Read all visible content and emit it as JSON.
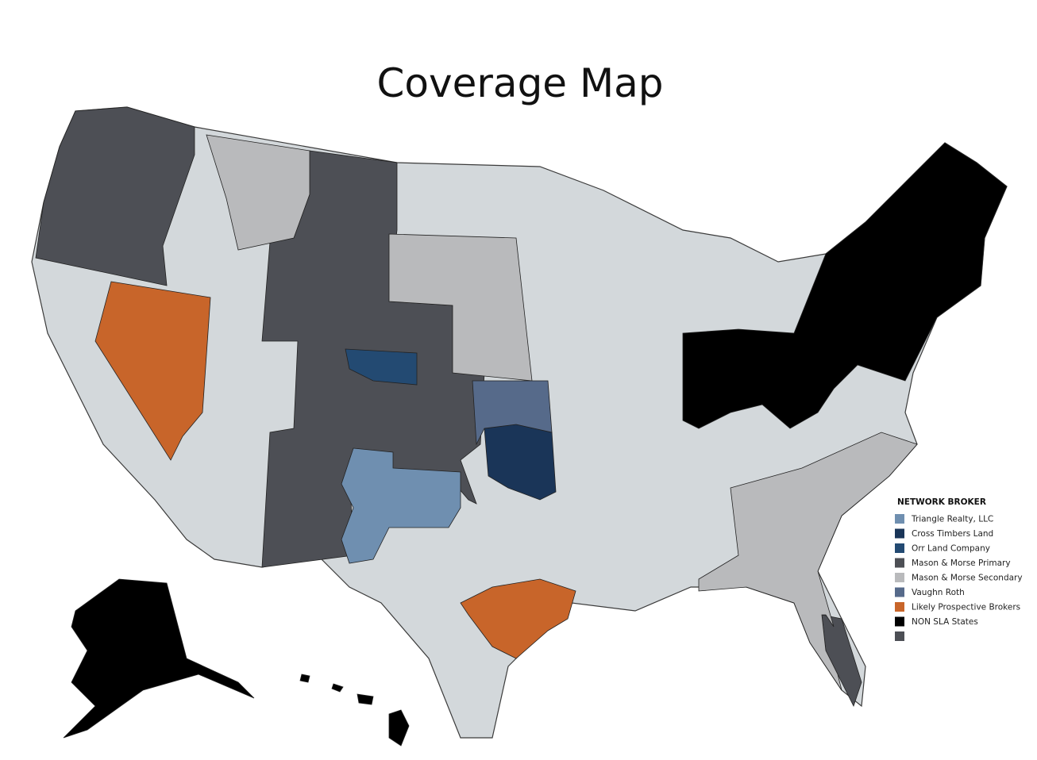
{
  "header": {
    "title": "Coverage Map"
  },
  "legend": {
    "title": "NETWORK BROKER",
    "items": [
      {
        "label": "Triangle Realty, LLC",
        "color": "#6f8fb0"
      },
      {
        "label": "Cross Timbers Land",
        "color": "#1a3558"
      },
      {
        "label": "Orr Land Company",
        "color": "#234a72"
      },
      {
        "label": "Mason & Morse Primary",
        "color": "#4d4f55"
      },
      {
        "label": "Mason & Morse Secondary",
        "color": "#b9babc"
      },
      {
        "label": "Vaughn Roth",
        "color": "#566a8a"
      },
      {
        "label": "Likely Prospective Brokers",
        "color": "#c8652a"
      },
      {
        "label": "NON SLA States",
        "color": "#000000"
      }
    ]
  }
}
